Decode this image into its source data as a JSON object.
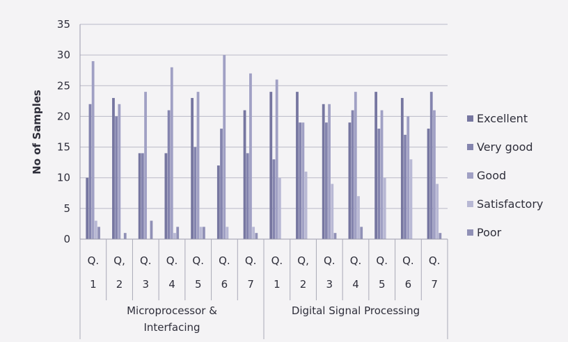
{
  "chart_data": {
    "type": "bar",
    "title": "",
    "ylabel": "No of Samples",
    "xlabel": "",
    "ylim": [
      0,
      35
    ],
    "yticks": [
      0,
      5,
      10,
      15,
      20,
      25,
      30,
      35
    ],
    "grid": true,
    "legend_position": "right",
    "groups": [
      {
        "label": "Microprocessor & Interfacing",
        "label_lines": [
          "Microprocessor &",
          "Interfacing"
        ]
      },
      {
        "label": "Digital Signal Processing",
        "label_lines": [
          "Digital Signal Processing"
        ]
      }
    ],
    "categories": [
      {
        "top": "Q.",
        "bottom": "1",
        "group": 0
      },
      {
        "top": "Q,",
        "bottom": "2",
        "group": 0
      },
      {
        "top": "Q.",
        "bottom": "3",
        "group": 0
      },
      {
        "top": "Q.",
        "bottom": "4",
        "group": 0
      },
      {
        "top": "Q.",
        "bottom": "5",
        "group": 0
      },
      {
        "top": "Q.",
        "bottom": "6",
        "group": 0
      },
      {
        "top": "Q.",
        "bottom": "7",
        "group": 0
      },
      {
        "top": "Q.",
        "bottom": "1",
        "group": 1
      },
      {
        "top": "Q,",
        "bottom": "2",
        "group": 1
      },
      {
        "top": "Q.",
        "bottom": "3",
        "group": 1
      },
      {
        "top": "Q.",
        "bottom": "4",
        "group": 1
      },
      {
        "top": "Q.",
        "bottom": "5",
        "group": 1
      },
      {
        "top": "Q.",
        "bottom": "6",
        "group": 1
      },
      {
        "top": "Q.",
        "bottom": "7",
        "group": 1
      }
    ],
    "series": [
      {
        "name": "Excellent",
        "color": "#7676a0",
        "values": [
          10,
          23,
          14,
          14,
          23,
          12,
          21,
          24,
          24,
          22,
          19,
          24,
          23,
          18
        ]
      },
      {
        "name": "Very good",
        "color": "#8484ae",
        "values": [
          22,
          20,
          14,
          21,
          15,
          18,
          14,
          13,
          19,
          19,
          21,
          18,
          17,
          24
        ]
      },
      {
        "name": "Good",
        "color": "#a0a0c4",
        "values": [
          29,
          22,
          24,
          28,
          24,
          30,
          27,
          26,
          19,
          22,
          24,
          21,
          20,
          21
        ]
      },
      {
        "name": "Satisfactory",
        "color": "#b8b8d4",
        "values": [
          3,
          0,
          0,
          1,
          2,
          2,
          2,
          10,
          11,
          9,
          7,
          10,
          13,
          9
        ]
      },
      {
        "name": "Poor",
        "color": "#9090b6",
        "values": [
          2,
          1,
          3,
          2,
          2,
          0,
          1,
          0,
          0,
          1,
          2,
          0,
          0,
          1
        ]
      }
    ]
  }
}
